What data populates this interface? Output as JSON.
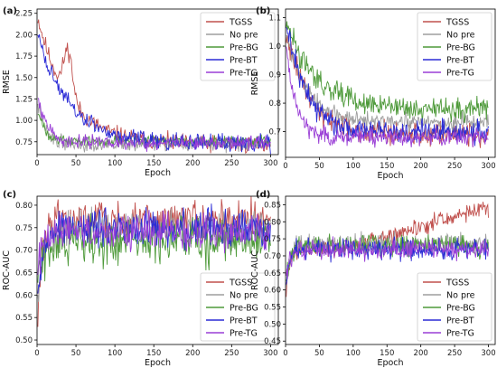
{
  "colors": {
    "TGSS": "#c0504d",
    "No pre": "#9e9e9e",
    "Pre-BG": "#4e9a3a",
    "Pre-BT": "#2b2bd6",
    "Pre-TG": "#9a3fd6"
  },
  "chart_data": [
    {
      "panel": "(a)",
      "type": "line",
      "xlabel": "Epoch",
      "ylabel": "RMSE",
      "xlim": [
        0,
        310
      ],
      "ylim": [
        0.6,
        2.3
      ],
      "xticks": [
        0,
        50,
        100,
        150,
        200,
        250,
        300
      ],
      "yticks": [
        0.75,
        1.0,
        1.25,
        1.5,
        1.75,
        2.0,
        2.25
      ],
      "ytick_decimals": 2,
      "legend": "top-right",
      "series": [
        {
          "name": "TGSS",
          "start": 2.2,
          "final": 0.72,
          "decay": 40,
          "noise": 0.05,
          "seed": 11,
          "bump": [
            40,
            0.55
          ]
        },
        {
          "name": "No pre",
          "start": 1.2,
          "final": 0.72,
          "decay": 10,
          "noise": 0.04,
          "seed": 22
        },
        {
          "name": "Pre-BG",
          "start": 1.1,
          "final": 0.76,
          "decay": 10,
          "noise": 0.03,
          "seed": 33
        },
        {
          "name": "Pre-BT",
          "start": 2.0,
          "final": 0.73,
          "decay": 40,
          "noise": 0.05,
          "seed": 44
        },
        {
          "name": "Pre-TG",
          "start": 1.3,
          "final": 0.74,
          "decay": 12,
          "noise": 0.04,
          "seed": 55
        }
      ]
    },
    {
      "panel": "(b)",
      "type": "line",
      "xlabel": "Epoch",
      "ylabel": "RMSE",
      "xlim": [
        0,
        310
      ],
      "ylim": [
        0.61,
        1.13
      ],
      "xticks": [
        0,
        50,
        100,
        150,
        200,
        250,
        300
      ],
      "yticks": [
        0.7,
        0.8,
        0.9,
        1.0,
        1.1
      ],
      "ytick_decimals": 1,
      "legend": "top-right",
      "series": [
        {
          "name": "TGSS",
          "start": 1.05,
          "final": 0.69,
          "decay": 35,
          "noise": 0.02,
          "seed": 66
        },
        {
          "name": "No pre",
          "start": 1.05,
          "final": 0.73,
          "decay": 30,
          "noise": 0.015,
          "seed": 77
        },
        {
          "name": "Pre-BG",
          "start": 1.1,
          "final": 0.78,
          "decay": 40,
          "noise": 0.02,
          "seed": 88
        },
        {
          "name": "Pre-BT",
          "start": 1.08,
          "final": 0.7,
          "decay": 30,
          "noise": 0.02,
          "seed": 99
        },
        {
          "name": "Pre-TG",
          "start": 1.0,
          "final": 0.68,
          "decay": 15,
          "noise": 0.015,
          "seed": 111
        }
      ]
    },
    {
      "panel": "(c)",
      "type": "line",
      "xlabel": "Epoch",
      "ylabel": "ROC-AUC",
      "xlim": [
        0,
        310
      ],
      "ylim": [
        0.49,
        0.82
      ],
      "xticks": [
        0,
        50,
        100,
        150,
        200,
        250,
        300
      ],
      "yticks": [
        0.5,
        0.55,
        0.6,
        0.65,
        0.7,
        0.75,
        0.8
      ],
      "ytick_decimals": 2,
      "legend": "bottom-right",
      "series": [
        {
          "name": "TGSS",
          "start": 0.55,
          "final": 0.77,
          "decay": 6,
          "noise": 0.02,
          "seed": 122
        },
        {
          "name": "No pre",
          "start": 0.6,
          "final": 0.75,
          "decay": 8,
          "noise": 0.02,
          "seed": 133
        },
        {
          "name": "Pre-BG",
          "start": 0.65,
          "final": 0.72,
          "decay": 8,
          "noise": 0.025,
          "seed": 144
        },
        {
          "name": "Pre-BT",
          "start": 0.6,
          "final": 0.75,
          "decay": 8,
          "noise": 0.02,
          "seed": 155
        },
        {
          "name": "Pre-TG",
          "start": 0.66,
          "final": 0.74,
          "decay": 10,
          "noise": 0.02,
          "seed": 166
        }
      ]
    },
    {
      "panel": "(d)",
      "type": "line",
      "xlabel": "Epoch",
      "ylabel": "ROC-AUC",
      "xlim": [
        0,
        310
      ],
      "ylim": [
        0.44,
        0.875
      ],
      "xticks": [
        0,
        50,
        100,
        150,
        200,
        250,
        300
      ],
      "yticks": [
        0.45,
        0.5,
        0.55,
        0.6,
        0.65,
        0.7,
        0.75,
        0.8,
        0.85
      ],
      "ytick_decimals": 2,
      "legend": "bottom-right",
      "series": [
        {
          "name": "TGSS",
          "start": 0.6,
          "final": 0.72,
          "decay": 5,
          "noise": 0.012,
          "seed": 177,
          "ramp": [
            90,
            290,
            0.84
          ]
        },
        {
          "name": "No pre",
          "start": 0.62,
          "final": 0.735,
          "decay": 6,
          "noise": 0.015,
          "seed": 188
        },
        {
          "name": "Pre-BG",
          "start": 0.65,
          "final": 0.73,
          "decay": 6,
          "noise": 0.015,
          "seed": 199
        },
        {
          "name": "Pre-BT",
          "start": 0.63,
          "final": 0.72,
          "decay": 6,
          "noise": 0.015,
          "seed": 211
        },
        {
          "name": "Pre-TG",
          "start": 0.64,
          "final": 0.72,
          "decay": 6,
          "noise": 0.015,
          "seed": 222
        }
      ]
    }
  ]
}
